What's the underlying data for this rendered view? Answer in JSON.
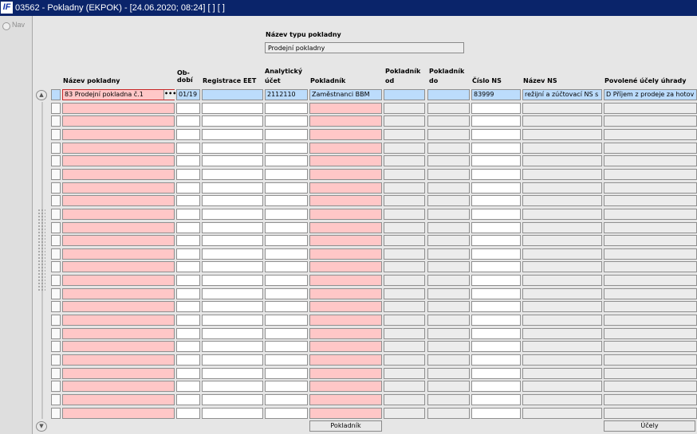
{
  "window": {
    "title": "03562 - Pokladny (EKPOK) - [24.06.2020; 08:24]  [ ]  [ ]",
    "app_icon": "IF"
  },
  "left_panel": {
    "nav_label": "Nav"
  },
  "header": {
    "type_label": "Název typu pokladny",
    "type_value": "Prodejní pokladny"
  },
  "columns": {
    "name": "Název pokladny",
    "period_1": "Ob-",
    "period_2": "dobí",
    "eet": "Registrace EET",
    "account_1": "Analytický",
    "account_2": "účet",
    "cashier": "Pokladník",
    "cashier_from_1": "Pokladník",
    "cashier_from_2": "od",
    "cashier_to_1": "Pokladník",
    "cashier_to_2": "do",
    "ns_number": "Číslo NS",
    "ns_name": "Název NS",
    "purposes": "Povolené účely úhrady"
  },
  "rows": [
    {
      "name": "83 Prodejní pokladna č.1",
      "period": "01/19",
      "eet": "",
      "account": "2112110",
      "cashier": "Zaměstnanci BBM",
      "cashier_from": "",
      "cashier_to": "",
      "ns_number": "83999",
      "ns_name": "režijní a zúčtovací NS s",
      "purposes": "D Příjem z prodeje za hotov"
    }
  ],
  "empty_row_count": 24,
  "lov_button_label": "•••",
  "buttons": {
    "cashier": "Pokladník",
    "purposes": "Účely"
  },
  "colors": {
    "titlebar": "#0a246a",
    "required_field": "#ffc7c7",
    "current_row": "#bcdcfc",
    "readonly_field": "#ececec"
  }
}
